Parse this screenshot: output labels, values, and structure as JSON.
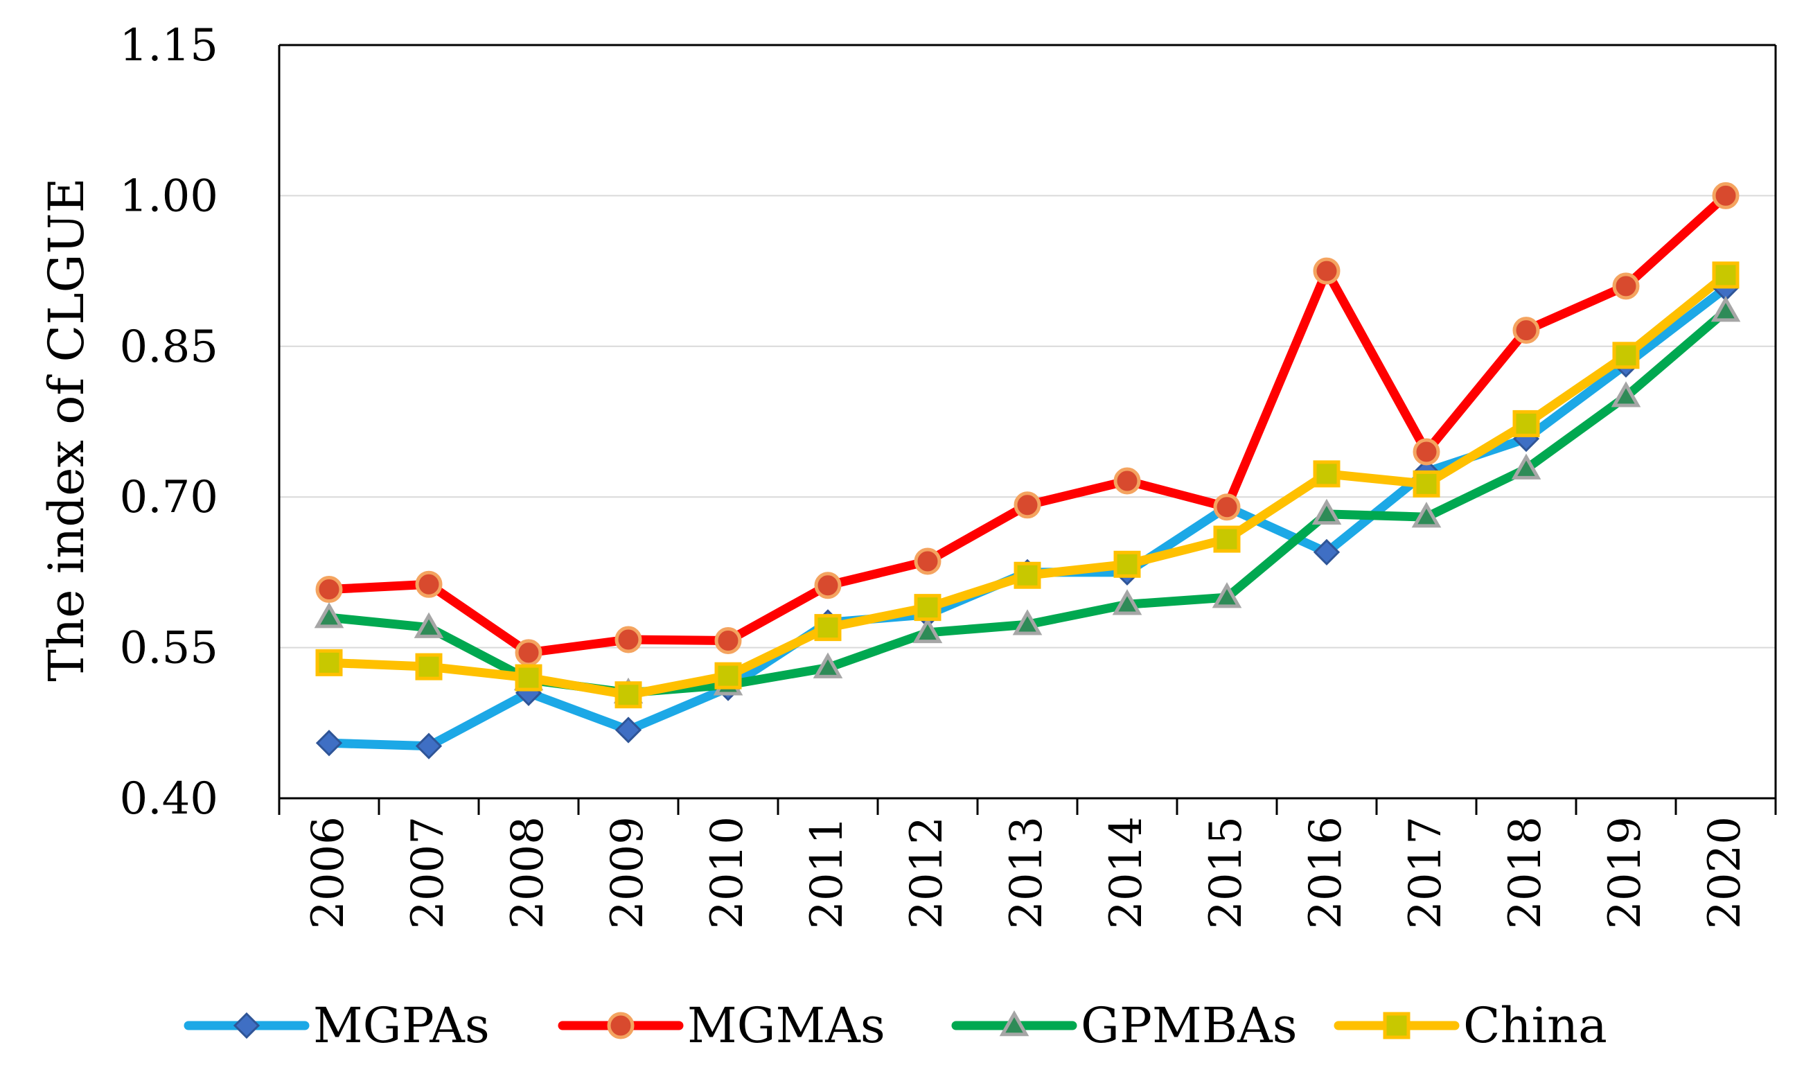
{
  "chart_data": {
    "type": "line",
    "title": "",
    "xlabel": "",
    "ylabel": "The index of CLGUE",
    "ylim": [
      0.4,
      1.15
    ],
    "yticks": [
      "0.40",
      "0.55",
      "0.70",
      "0.85",
      "1.00",
      "1.15"
    ],
    "ytick_values": [
      0.4,
      0.55,
      0.7,
      0.85,
      1.0,
      1.15
    ],
    "grid": true,
    "legend_position": "bottom",
    "categories": [
      "2006",
      "2007",
      "2008",
      "2009",
      "2010",
      "2011",
      "2012",
      "2013",
      "2014",
      "2015",
      "2016",
      "2017",
      "2018",
      "2019",
      "2020"
    ],
    "series": [
      {
        "name": "MGPAs",
        "color": "#1CA8E6",
        "marker": "diamond",
        "marker_color": "#3F6FC4",
        "values": [
          0.455,
          0.452,
          0.505,
          0.468,
          0.51,
          0.575,
          0.583,
          0.625,
          0.625,
          0.69,
          0.645,
          0.725,
          0.758,
          0.832,
          0.908
        ]
      },
      {
        "name": "MGMAs",
        "color": "#FF0000",
        "marker": "circle",
        "marker_color": "#D84A2E",
        "values": [
          0.608,
          0.613,
          0.545,
          0.558,
          0.557,
          0.612,
          0.636,
          0.692,
          0.716,
          0.69,
          0.925,
          0.745,
          0.866,
          0.91,
          1.0
        ]
      },
      {
        "name": "GPMBAs",
        "color": "#00A850",
        "marker": "triangle",
        "marker_color": "#A0A0A0",
        "values": [
          0.58,
          0.57,
          0.518,
          0.505,
          0.513,
          0.53,
          0.565,
          0.573,
          0.593,
          0.6,
          0.683,
          0.68,
          0.728,
          0.8,
          0.885
        ]
      },
      {
        "name": "China",
        "color": "#FFC000",
        "marker": "square",
        "marker_color": "#C8C000",
        "values": [
          0.535,
          0.531,
          0.52,
          0.503,
          0.522,
          0.57,
          0.59,
          0.622,
          0.633,
          0.658,
          0.723,
          0.713,
          0.773,
          0.841,
          0.921
        ]
      }
    ]
  }
}
